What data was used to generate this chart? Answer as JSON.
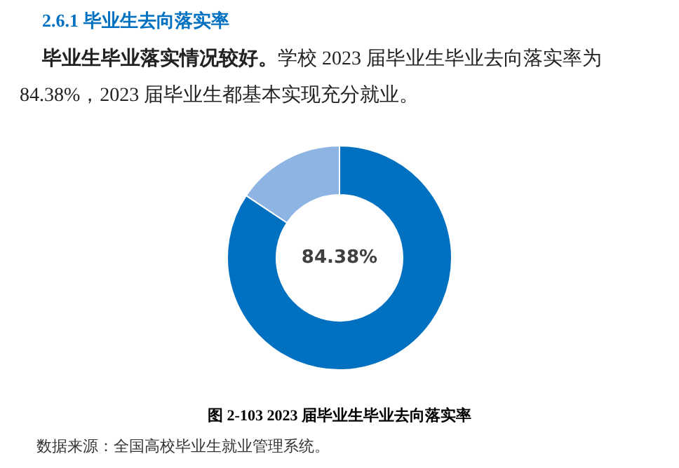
{
  "chart_data": {
    "type": "donut",
    "title": "2.6.1 毕业生去向落实率",
    "categories": [
      null,
      null
    ],
    "values": [
      84.38,
      15.62
    ],
    "colors": [
      "#0070c0",
      "#8eb4e3"
    ],
    "annotations": [
      "毕业生毕业落实情况较好。",
      "学校 2023 届毕业生毕业去向落实率为 84.38%，2023 届毕业生都基本实现充分就业。",
      "84.38%",
      "图 2-103 2023 届毕业生毕业去向落实率",
      "数据来源：全国高校毕业生就业管理系统。"
    ]
  }
}
